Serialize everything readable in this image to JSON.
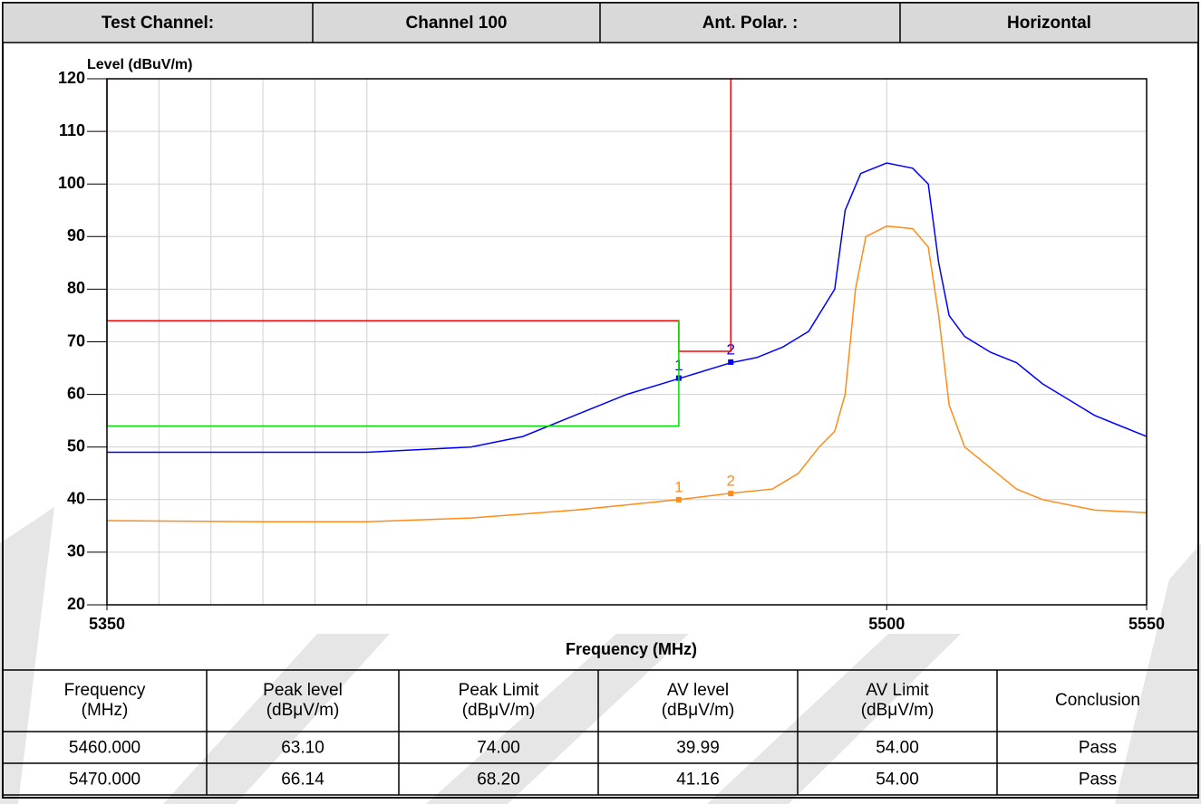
{
  "header": {
    "cells": [
      "Test Channel:",
      "Channel 100",
      "Ant. Polar. :",
      "Horizontal"
    ]
  },
  "chart_data": {
    "type": "line",
    "ylabel": "Level (dBuV/m)",
    "xlabel": "Frequency (MHz)",
    "xlim": [
      5350,
      5550
    ],
    "xticks": [
      5350,
      5500,
      5550
    ],
    "xgrid": [
      5360,
      5370,
      5380,
      5390,
      5400,
      5500
    ],
    "ylim": [
      20,
      120
    ],
    "yticks": [
      20,
      30,
      40,
      50,
      60,
      70,
      80,
      90,
      100,
      110,
      120
    ],
    "grid": true,
    "series": [
      {
        "color": "#0000ff",
        "x": [
          5350,
          5360,
          5380,
          5400,
          5420,
          5430,
          5440,
          5450,
          5460,
          5470,
          5475,
          5480,
          5485,
          5490,
          5492,
          5495,
          5500,
          5505,
          5508,
          5510,
          5512,
          5515,
          5520,
          5525,
          5530,
          5535,
          5540,
          5545,
          5550
        ],
        "values": [
          49,
          49,
          49,
          49,
          50,
          52,
          56,
          60,
          63,
          66,
          67,
          69,
          72,
          80,
          95,
          102,
          104,
          103,
          100,
          85,
          75,
          71,
          68,
          66,
          62,
          59,
          56,
          54,
          52
        ],
        "markers": [
          {
            "label": "1",
            "x": 5460,
            "y": 63.1
          },
          {
            "label": "2",
            "x": 5470,
            "y": 66.14
          }
        ]
      },
      {
        "color": "#ff8c1a",
        "x": [
          5350,
          5380,
          5400,
          5420,
          5440,
          5450,
          5460,
          5470,
          5478,
          5483,
          5487,
          5490,
          5492,
          5494,
          5496,
          5500,
          5505,
          5508,
          5510,
          5512,
          5515,
          5520,
          5525,
          5530,
          5540,
          5550
        ],
        "values": [
          36,
          35.8,
          35.8,
          36.5,
          38,
          39,
          40,
          41.2,
          42,
          45,
          50,
          53,
          60,
          80,
          90,
          92,
          91.5,
          88,
          75,
          58,
          50,
          46,
          42,
          40,
          38,
          37.5
        ],
        "markers": [
          {
            "label": "1",
            "x": 5460,
            "y": 39.99
          },
          {
            "label": "2",
            "x": 5470,
            "y": 41.16
          }
        ]
      },
      {
        "color": "#ff0000",
        "x": [
          5350,
          5350,
          5460,
          5460,
          5470,
          5470
        ],
        "values": [
          120,
          74,
          74,
          68.2,
          68.2,
          120
        ]
      },
      {
        "color": "#00dd00",
        "x": [
          5350,
          5350,
          5460,
          5460
        ],
        "values": [
          74,
          54,
          54,
          74
        ]
      }
    ]
  },
  "table": {
    "header": [
      [
        "Frequency",
        "(MHz)"
      ],
      [
        "Peak level",
        "(dBμV/m)"
      ],
      [
        "Peak Limit",
        "(dBμV/m)"
      ],
      [
        "AV level",
        "(dBμV/m)"
      ],
      [
        "AV Limit",
        "(dBμV/m)"
      ],
      [
        "Conclusion"
      ]
    ],
    "rows": [
      [
        "5460.000",
        "63.10",
        "74.00",
        "39.99",
        "54.00",
        "Pass"
      ],
      [
        "5470.000",
        "66.14",
        "68.20",
        "41.16",
        "54.00",
        "Pass"
      ]
    ]
  }
}
